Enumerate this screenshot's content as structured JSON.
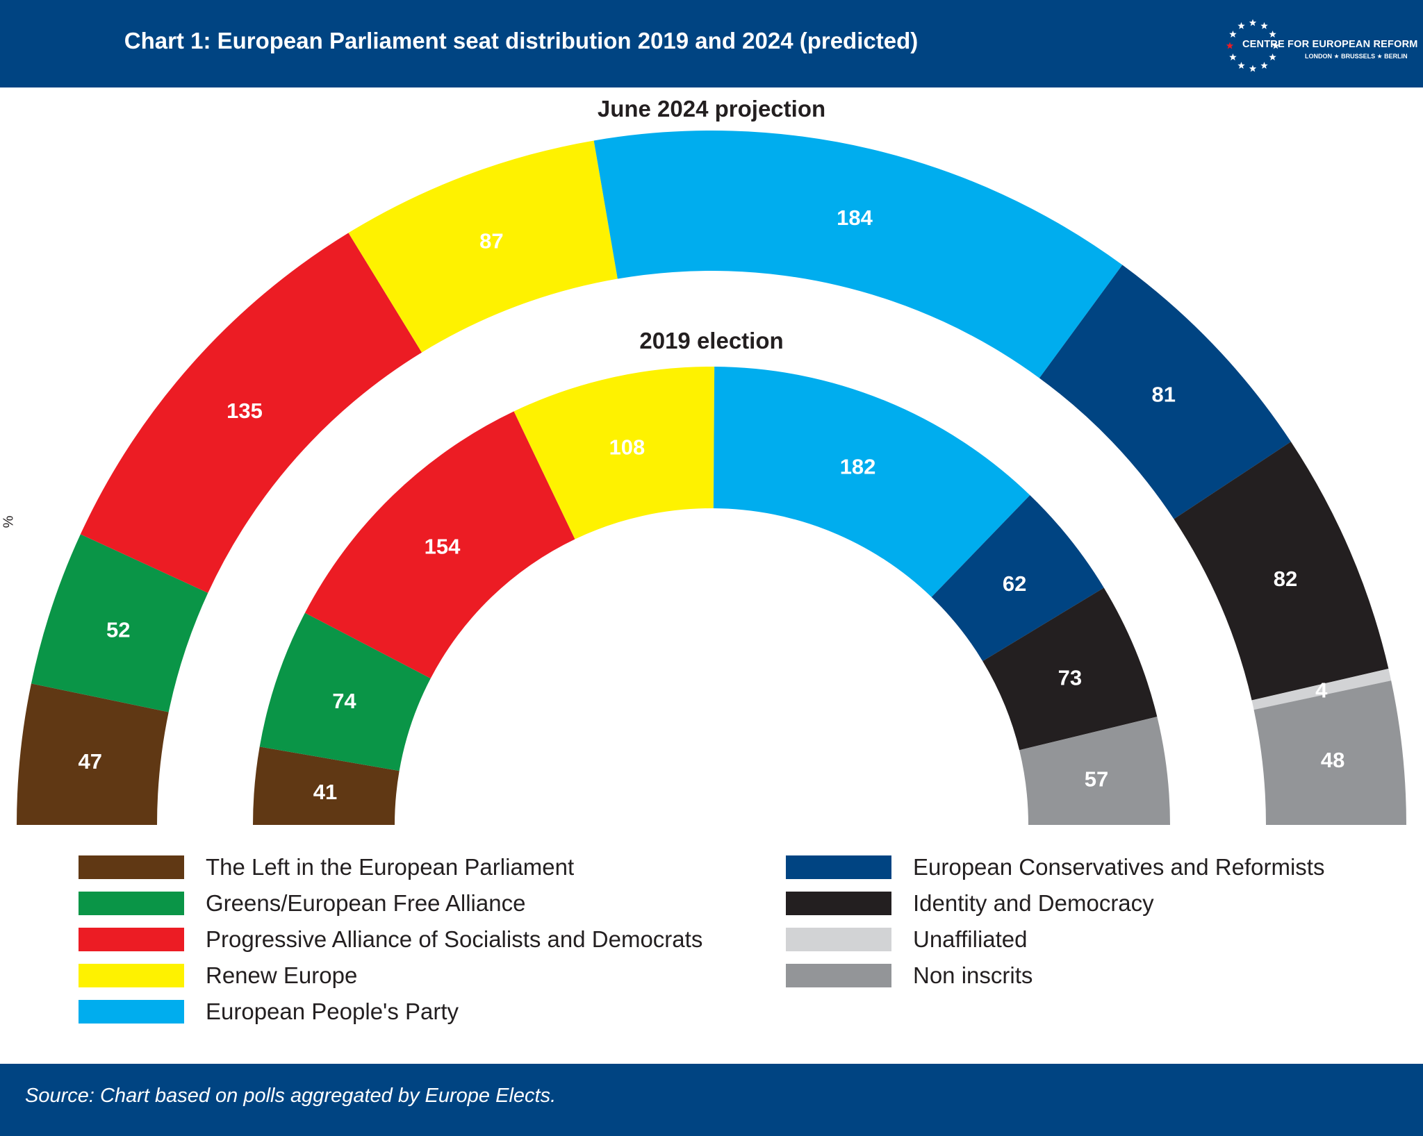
{
  "header": {
    "title": "Chart 1: European Parliament seat distribution 2019 and 2024 (predicted)",
    "logo_name": "CENTRE FOR EUROPEAN REFORM",
    "logo_cities": "LONDON ★ BRUSSELS ★ BERLIN",
    "bg_color": "#004482"
  },
  "side_mark": "%",
  "chart_data": {
    "type": "pie",
    "subtype": "parliament-semicircle",
    "rings": [
      {
        "title": "June 2024 projection",
        "segments": [
          {
            "party": "The Left in the European Parliament",
            "seats": 47,
            "color": "#603814"
          },
          {
            "party": "Greens/European Free Alliance",
            "seats": 52,
            "color": "#0a9547"
          },
          {
            "party": "Progressive Alliance of Socialists and Democrats",
            "seats": 135,
            "color": "#ec1c24"
          },
          {
            "party": "Renew Europe",
            "seats": 87,
            "color": "#fef200"
          },
          {
            "party": "European People's Party",
            "seats": 184,
            "color": "#00adee"
          },
          {
            "party": "European Conservatives and Reformists",
            "seats": 81,
            "color": "#004482"
          },
          {
            "party": "Identity and Democracy",
            "seats": 82,
            "color": "#231f20"
          },
          {
            "party": "Unaffiliated",
            "seats": 4,
            "color": "#d2d3d5"
          },
          {
            "party": "Non inscrits",
            "seats": 48,
            "color": "#939598"
          }
        ]
      },
      {
        "title": "2019 election",
        "segments": [
          {
            "party": "The Left in the European Parliament",
            "seats": 41,
            "color": "#603814"
          },
          {
            "party": "Greens/European Free Alliance",
            "seats": 74,
            "color": "#0a9547"
          },
          {
            "party": "Progressive Alliance of Socialists and Democrats",
            "seats": 154,
            "color": "#ec1c24"
          },
          {
            "party": "Renew Europe",
            "seats": 108,
            "color": "#fef200"
          },
          {
            "party": "European People's Party",
            "seats": 182,
            "color": "#00adee"
          },
          {
            "party": "European Conservatives and Reformists",
            "seats": 62,
            "color": "#004482"
          },
          {
            "party": "Identity and Democracy",
            "seats": 73,
            "color": "#231f20"
          },
          {
            "party": "Non inscrits",
            "seats": 57,
            "color": "#939598"
          }
        ]
      }
    ],
    "legend": {
      "placement": "bottom",
      "columns": [
        [
          {
            "label": "The Left in the European Parliament",
            "color": "#603814"
          },
          {
            "label": "Greens/European Free Alliance",
            "color": "#0a9547"
          },
          {
            "label": "Progressive Alliance of Socialists and Democrats",
            "color": "#ec1c24"
          },
          {
            "label": "Renew Europe",
            "color": "#fef200"
          },
          {
            "label": "European People's Party",
            "color": "#00adee"
          }
        ],
        [
          {
            "label": "European Conservatives and Reformists",
            "color": "#004482"
          },
          {
            "label": "Identity and Democracy",
            "color": "#231f20"
          },
          {
            "label": "Unaffiliated",
            "color": "#d2d3d5"
          },
          {
            "label": "Non inscrits",
            "color": "#939598"
          }
        ]
      ]
    }
  },
  "footer": {
    "source": "Source: Chart based on polls aggregated by Europe Elects."
  }
}
